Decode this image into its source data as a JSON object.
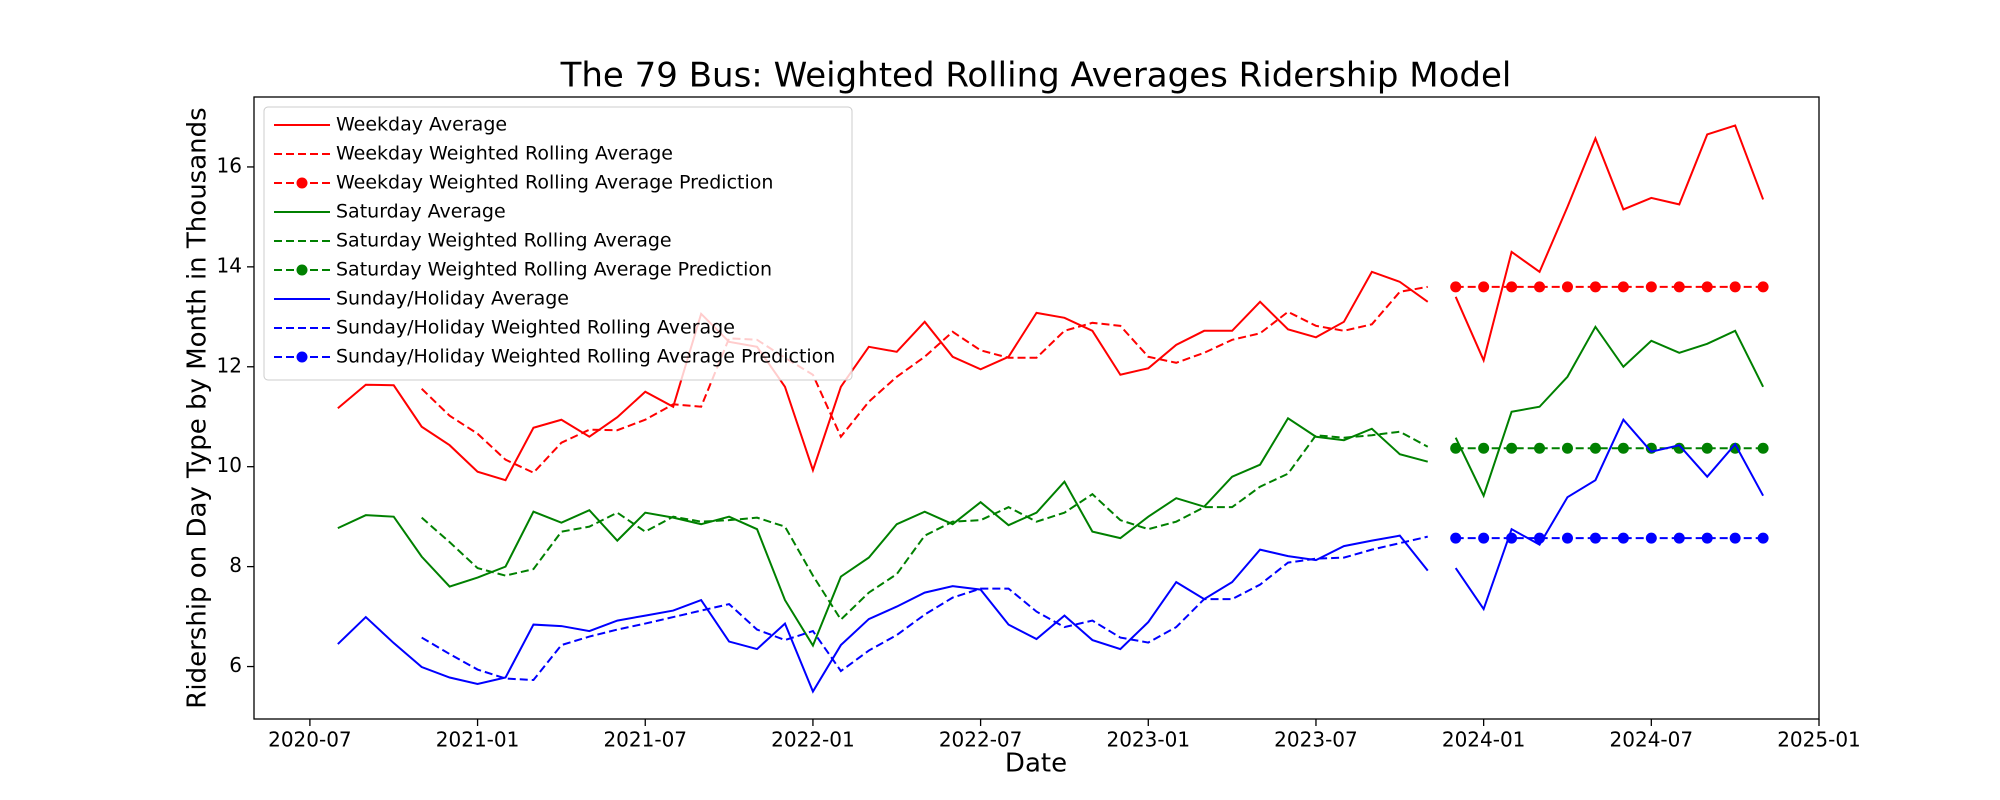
{
  "chart_data": {
    "type": "line",
    "title": "The 79 Bus: Weighted Rolling Averages Ridership Model",
    "x_label": "Date",
    "y_label": "Ridership on Day Type by Month in Thousands",
    "xlim": [
      "2020-05",
      "2025-01"
    ],
    "xticks": [
      "2020-07",
      "2021-01",
      "2021-07",
      "2022-01",
      "2022-07",
      "2023-01",
      "2023-07",
      "2024-01",
      "2024-07",
      "2025-01"
    ],
    "ylim": [
      4.95,
      17.4
    ],
    "yticks": [
      6,
      8,
      10,
      12,
      14,
      16
    ],
    "grid": false,
    "legend": "upper left",
    "series": [
      {
        "name": "Weekday Average",
        "color": "red",
        "linestyle": "solid",
        "marker": "none",
        "x": [
          "2020-08",
          "2020-09",
          "2020-10",
          "2020-11",
          "2020-12",
          "2021-01",
          "2021-02",
          "2021-03",
          "2021-04",
          "2021-05",
          "2021-06",
          "2021-07",
          "2021-08",
          "2021-09",
          "2021-10",
          "2021-11",
          "2021-12",
          "2022-01",
          "2022-02",
          "2022-03",
          "2022-04",
          "2022-05",
          "2022-06",
          "2022-07",
          "2022-08",
          "2022-09",
          "2022-10",
          "2022-11",
          "2022-12",
          "2023-01",
          "2023-02",
          "2023-03",
          "2023-04",
          "2023-05",
          "2023-06",
          "2023-07",
          "2023-08",
          "2023-09",
          "2023-10",
          "2023-11",
          null,
          "2023-12",
          "2024-01",
          "2024-02",
          "2024-03",
          "2024-04",
          "2024-05",
          "2024-06",
          "2024-07",
          "2024-08",
          "2024-09",
          "2024-10",
          "2024-11"
        ],
        "values": [
          11.17,
          11.64,
          11.63,
          10.8,
          10.43,
          9.9,
          9.73,
          10.78,
          10.94,
          10.6,
          10.99,
          11.5,
          11.2,
          13.06,
          12.5,
          12.4,
          11.6,
          9.93,
          11.6,
          12.4,
          12.3,
          12.9,
          12.2,
          11.95,
          12.2,
          13.08,
          12.98,
          12.72,
          11.84,
          11.97,
          12.44,
          12.72,
          12.72,
          13.3,
          12.75,
          12.59,
          12.9,
          13.9,
          13.7,
          13.3,
          null,
          13.4,
          12.13,
          14.3,
          13.9,
          15.2,
          16.57,
          15.15,
          15.38,
          15.25,
          16.65,
          16.83,
          15.35
        ]
      },
      {
        "name": "Weekday Weighted Rolling Average",
        "color": "red",
        "linestyle": "dashed",
        "marker": "none",
        "x": [
          "2020-11",
          "2020-12",
          "2021-01",
          "2021-02",
          "2021-03",
          "2021-04",
          "2021-05",
          "2021-06",
          "2021-07",
          "2021-08",
          "2021-09",
          "2021-10",
          "2021-11",
          "2021-12",
          "2022-01",
          "2022-02",
          "2022-03",
          "2022-04",
          "2022-05",
          "2022-06",
          "2022-07",
          "2022-08",
          "2022-09",
          "2022-10",
          "2022-11",
          "2022-12",
          "2023-01",
          "2023-02",
          "2023-03",
          "2023-04",
          "2023-05",
          "2023-06",
          "2023-07",
          "2023-08",
          "2023-09",
          "2023-10",
          "2023-11"
        ],
        "values": [
          11.56,
          11.02,
          10.66,
          10.14,
          9.88,
          10.48,
          10.74,
          10.73,
          10.94,
          11.25,
          11.2,
          12.57,
          12.54,
          12.18,
          11.84,
          10.6,
          11.3,
          11.8,
          12.2,
          12.7,
          12.33,
          12.18,
          12.18,
          12.72,
          12.88,
          12.82,
          12.2,
          12.08,
          12.28,
          12.54,
          12.67,
          13.1,
          12.82,
          12.72,
          12.85,
          13.5,
          13.6
        ]
      },
      {
        "name": "Weekday Weighted Rolling Average Prediction",
        "color": "red",
        "linestyle": "dashed",
        "marker": "o",
        "x": [
          "2023-12",
          "2024-01",
          "2024-02",
          "2024-03",
          "2024-04",
          "2024-05",
          "2024-06",
          "2024-07",
          "2024-08",
          "2024-09",
          "2024-10",
          "2024-11"
        ],
        "values": [
          13.6,
          13.6,
          13.6,
          13.6,
          13.6,
          13.6,
          13.6,
          13.6,
          13.6,
          13.6,
          13.6,
          13.6
        ]
      },
      {
        "name": "Saturday Average",
        "color": "green",
        "linestyle": "solid",
        "marker": "none",
        "x": [
          "2020-08",
          "2020-09",
          "2020-10",
          "2020-11",
          "2020-12",
          "2021-01",
          "2021-02",
          "2021-03",
          "2021-04",
          "2021-05",
          "2021-06",
          "2021-07",
          "2021-08",
          "2021-09",
          "2021-10",
          "2021-11",
          "2021-12",
          "2022-01",
          "2022-02",
          "2022-03",
          "2022-04",
          "2022-05",
          "2022-06",
          "2022-07",
          "2022-08",
          "2022-09",
          "2022-10",
          "2022-11",
          "2022-12",
          "2023-01",
          "2023-02",
          "2023-03",
          "2023-04",
          "2023-05",
          "2023-06",
          "2023-07",
          "2023-08",
          "2023-09",
          "2023-10",
          "2023-11",
          null,
          "2023-12",
          "2024-01",
          "2024-02",
          "2024-03",
          "2024-04",
          "2024-05",
          "2024-06",
          "2024-07",
          "2024-08",
          "2024-09",
          "2024-10",
          "2024-11"
        ],
        "values": [
          8.77,
          9.03,
          9.0,
          8.2,
          7.6,
          7.78,
          8.0,
          9.1,
          8.88,
          9.13,
          8.52,
          9.08,
          8.98,
          8.85,
          9.0,
          8.75,
          7.33,
          6.42,
          7.8,
          8.18,
          8.85,
          9.1,
          8.85,
          9.29,
          8.83,
          9.08,
          9.7,
          8.7,
          8.57,
          9.0,
          9.37,
          9.2,
          9.8,
          10.04,
          10.97,
          10.6,
          10.53,
          10.76,
          10.25,
          10.1,
          null,
          10.58,
          9.42,
          11.1,
          11.2,
          11.8,
          12.8,
          12.0,
          12.52,
          12.28,
          12.46,
          12.72,
          11.6
        ]
      },
      {
        "name": "Saturday Weighted Rolling Average",
        "color": "green",
        "linestyle": "dashed",
        "marker": "none",
        "x": [
          "2020-11",
          "2020-12",
          "2021-01",
          "2021-02",
          "2021-03",
          "2021-04",
          "2021-05",
          "2021-06",
          "2021-07",
          "2021-08",
          "2021-09",
          "2021-10",
          "2021-11",
          "2021-12",
          "2022-01",
          "2022-02",
          "2022-03",
          "2022-04",
          "2022-05",
          "2022-06",
          "2022-07",
          "2022-08",
          "2022-09",
          "2022-10",
          "2022-11",
          "2022-12",
          "2023-01",
          "2023-02",
          "2023-03",
          "2023-04",
          "2023-05",
          "2023-06",
          "2023-07",
          "2023-08",
          "2023-09",
          "2023-10",
          "2023-11"
        ],
        "values": [
          8.98,
          8.49,
          7.97,
          7.82,
          7.95,
          8.7,
          8.8,
          9.08,
          8.7,
          9.0,
          8.9,
          8.93,
          8.98,
          8.8,
          7.82,
          6.94,
          7.48,
          7.85,
          8.62,
          8.9,
          8.93,
          9.19,
          8.9,
          9.08,
          9.45,
          8.93,
          8.75,
          8.9,
          9.19,
          9.19,
          9.6,
          9.86,
          10.63,
          10.58,
          10.63,
          10.7,
          10.4
        ]
      },
      {
        "name": "Saturday Weighted Rolling Average Prediction",
        "color": "green",
        "linestyle": "dashed",
        "marker": "o",
        "x": [
          "2023-12",
          "2024-01",
          "2024-02",
          "2024-03",
          "2024-04",
          "2024-05",
          "2024-06",
          "2024-07",
          "2024-08",
          "2024-09",
          "2024-10",
          "2024-11"
        ],
        "values": [
          10.37,
          10.37,
          10.37,
          10.37,
          10.37,
          10.37,
          10.37,
          10.37,
          10.37,
          10.37,
          10.37,
          10.37
        ]
      },
      {
        "name": "Sunday/Holiday Average",
        "color": "blue",
        "linestyle": "solid",
        "marker": "none",
        "x": [
          "2020-08",
          "2020-09",
          "2020-10",
          "2020-11",
          "2020-12",
          "2021-01",
          "2021-02",
          "2021-03",
          "2021-04",
          "2021-05",
          "2021-06",
          "2021-07",
          "2021-08",
          "2021-09",
          "2021-10",
          "2021-11",
          "2021-12",
          "2022-01",
          "2022-02",
          "2022-03",
          "2022-04",
          "2022-05",
          "2022-06",
          "2022-07",
          "2022-08",
          "2022-09",
          "2022-10",
          "2022-11",
          "2022-12",
          "2023-01",
          "2023-02",
          "2023-03",
          "2023-04",
          "2023-05",
          "2023-06",
          "2023-07",
          "2023-08",
          "2023-09",
          "2023-10",
          "2023-11",
          null,
          "2023-12",
          "2024-01",
          "2024-02",
          "2024-03",
          "2024-04",
          "2024-05",
          "2024-06",
          "2024-07",
          "2024-08",
          "2024-09",
          "2024-10",
          "2024-11"
        ],
        "values": [
          6.45,
          6.99,
          6.47,
          5.99,
          5.78,
          5.65,
          5.78,
          6.84,
          6.81,
          6.71,
          6.92,
          7.02,
          7.12,
          7.33,
          6.5,
          6.35,
          6.86,
          5.5,
          6.43,
          6.95,
          7.2,
          7.48,
          7.61,
          7.54,
          6.84,
          6.55,
          7.02,
          6.53,
          6.35,
          6.89,
          7.69,
          7.35,
          7.69,
          8.34,
          8.21,
          8.13,
          8.41,
          8.52,
          8.62,
          7.92,
          null,
          7.97,
          7.15,
          8.75,
          8.44,
          9.39,
          9.73,
          10.94,
          10.3,
          10.43,
          9.8,
          10.45,
          9.42
        ]
      },
      {
        "name": "Sunday/Holiday Weighted Rolling Average",
        "color": "blue",
        "linestyle": "dashed",
        "marker": "none",
        "x": [
          "2020-11",
          "2020-12",
          "2021-01",
          "2021-02",
          "2021-03",
          "2021-04",
          "2021-05",
          "2021-06",
          "2021-07",
          "2021-08",
          "2021-09",
          "2021-10",
          "2021-11",
          "2021-12",
          "2022-01",
          "2022-02",
          "2022-03",
          "2022-04",
          "2022-05",
          "2022-06",
          "2022-07",
          "2022-08",
          "2022-09",
          "2022-10",
          "2022-11",
          "2022-12",
          "2023-01",
          "2023-02",
          "2023-03",
          "2023-04",
          "2023-05",
          "2023-06",
          "2023-07",
          "2023-08",
          "2023-09",
          "2023-10",
          "2023-11"
        ],
        "values": [
          6.58,
          6.25,
          5.94,
          5.76,
          5.73,
          6.43,
          6.6,
          6.74,
          6.86,
          6.99,
          7.12,
          7.25,
          6.74,
          6.53,
          6.71,
          5.91,
          6.32,
          6.63,
          7.04,
          7.38,
          7.56,
          7.56,
          7.1,
          6.79,
          6.92,
          6.58,
          6.48,
          6.79,
          7.35,
          7.35,
          7.64,
          8.08,
          8.16,
          8.18,
          8.34,
          8.47,
          8.6
        ]
      },
      {
        "name": "Sunday/Holiday Weighted Rolling Average Prediction",
        "color": "blue",
        "linestyle": "dashed",
        "marker": "o",
        "x": [
          "2023-12",
          "2024-01",
          "2024-02",
          "2024-03",
          "2024-04",
          "2024-05",
          "2024-06",
          "2024-07",
          "2024-08",
          "2024-09",
          "2024-10",
          "2024-11"
        ],
        "values": [
          8.57,
          8.57,
          8.57,
          8.57,
          8.57,
          8.57,
          8.57,
          8.57,
          8.57,
          8.57,
          8.57,
          8.57
        ]
      }
    ]
  }
}
